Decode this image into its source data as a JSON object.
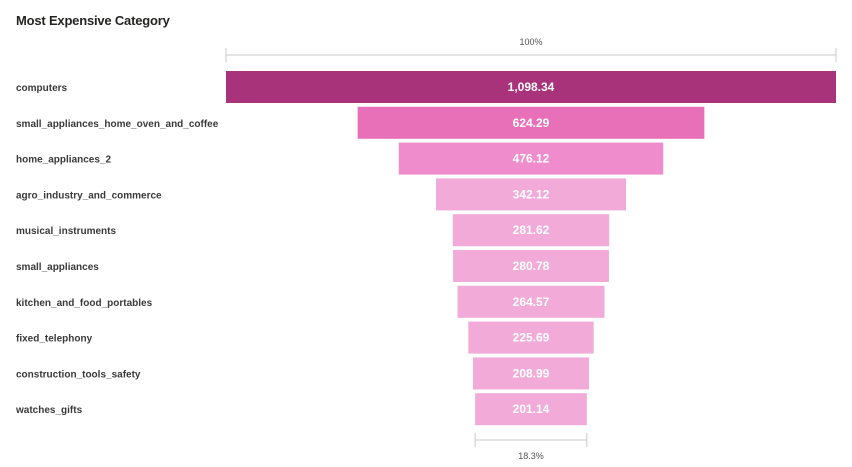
{
  "visual": {
    "title": "Most Expensive Category"
  },
  "chart_data": {
    "type": "bar",
    "subtype": "funnel",
    "title": "Most Expensive Category",
    "categories": [
      "computers",
      "small_appliances_home_oven_and_coffee",
      "home_appliances_2",
      "agro_industry_and_commerce",
      "musical_instruments",
      "small_appliances",
      "kitchen_and_food_portables",
      "fixed_telephony",
      "construction_tools_safety",
      "watches_gifts"
    ],
    "values": [
      1098.34,
      624.29,
      476.12,
      342.12,
      281.62,
      280.78,
      264.57,
      225.69,
      208.99,
      201.14
    ],
    "value_labels": [
      "1,098.34",
      "624.29",
      "476.12",
      "342.12",
      "281.62",
      "280.78",
      "264.57",
      "225.69",
      "208.99",
      "201.14"
    ],
    "top_percent_label": "100%",
    "bottom_percent_label": "18.3%",
    "colors": {
      "first_bar": "#a8337a",
      "second_bar": "#e870b8",
      "third_bar": "#ef8ccb",
      "rest_bars": "#f2aad9",
      "range_line": "#c8c8c8"
    }
  }
}
